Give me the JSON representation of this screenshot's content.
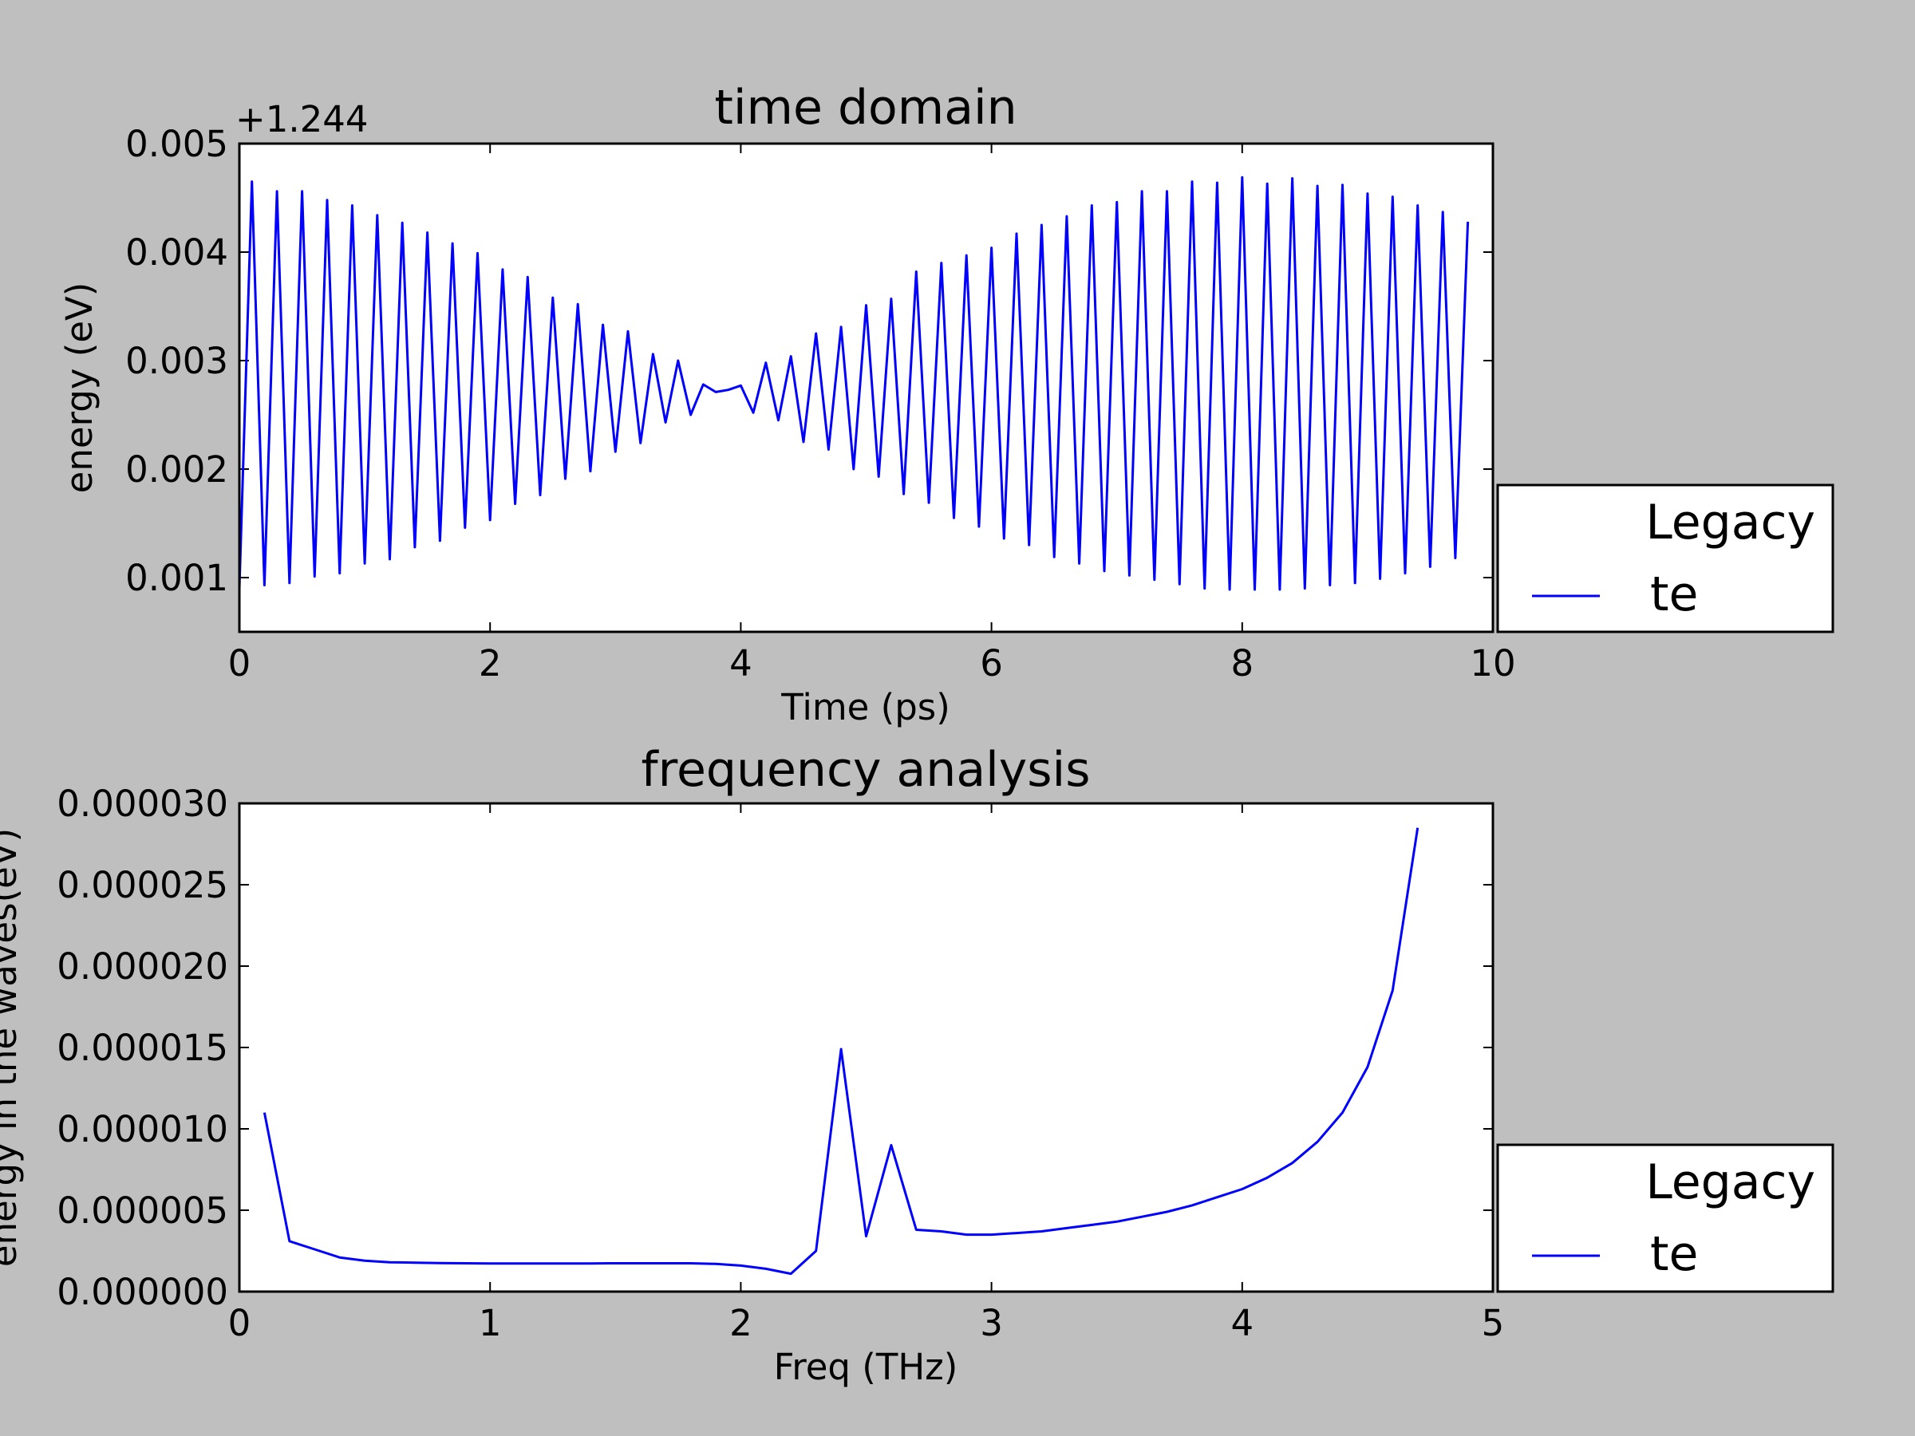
{
  "chart_data": [
    {
      "type": "line",
      "title": "time domain",
      "xlabel": "Time (ps)",
      "ylabel": "energy (eV)",
      "offset_label": "+1.244",
      "xlim": [
        0,
        10
      ],
      "ylim": [
        0.0005,
        0.005
      ],
      "xticks": [
        0,
        2,
        4,
        6,
        8,
        10
      ],
      "xtick_labels": [
        "0",
        "2",
        "4",
        "6",
        "8",
        "10"
      ],
      "yticks": [
        0.001,
        0.002,
        0.003,
        0.004,
        0.005
      ],
      "ytick_labels": [
        "0.001",
        "0.002",
        "0.003",
        "0.004",
        "0.005"
      ],
      "grid": false,
      "legend": {
        "title": "Legacy",
        "placement": "outside-right-lower",
        "entries": [
          "te"
        ]
      },
      "series": [
        {
          "name": "te",
          "color": "#0000ff",
          "x": [
            0,
            0.1,
            0.2,
            0.3,
            0.4,
            0.5,
            0.6,
            0.7,
            0.8,
            0.9,
            1.0,
            1.1,
            1.2,
            1.3,
            1.4,
            1.5,
            1.6,
            1.7,
            1.8,
            1.9,
            2.0,
            2.1,
            2.2,
            2.3,
            2.4,
            2.5,
            2.6,
            2.7,
            2.8,
            2.9,
            3.0,
            3.1,
            3.2,
            3.3,
            3.4,
            3.5,
            3.6,
            3.7,
            3.8,
            3.9,
            4.0,
            4.1,
            4.2,
            4.3,
            4.4,
            4.5,
            4.6,
            4.7,
            4.8,
            4.9,
            5.0,
            5.1,
            5.2,
            5.3,
            5.4,
            5.5,
            5.6,
            5.7,
            5.8,
            5.9,
            6.0,
            6.1,
            6.2,
            6.3,
            6.4,
            6.5,
            6.6,
            6.7,
            6.8,
            6.9,
            7.0,
            7.1,
            7.2,
            7.3,
            7.4,
            7.5,
            7.6,
            7.7,
            7.8,
            7.9,
            8.0,
            8.1,
            8.2,
            8.3,
            8.4,
            8.5,
            8.6,
            8.7,
            8.8,
            8.9,
            9.0,
            9.1,
            9.2,
            9.3,
            9.4,
            9.5,
            9.6,
            9.7,
            9.8
          ],
          "y": [
            0.0009,
            0.00465,
            0.00093,
            0.00456,
            0.00095,
            0.00456,
            0.00101,
            0.00448,
            0.00104,
            0.00443,
            0.00113,
            0.00434,
            0.00117,
            0.00427,
            0.00128,
            0.00418,
            0.00134,
            0.00408,
            0.00146,
            0.00399,
            0.00153,
            0.00384,
            0.00168,
            0.00377,
            0.00176,
            0.00358,
            0.00191,
            0.00352,
            0.00198,
            0.00333,
            0.00216,
            0.00327,
            0.00224,
            0.00306,
            0.00243,
            0.003,
            0.0025,
            0.00278,
            0.00271,
            0.00273,
            0.00277,
            0.00252,
            0.00298,
            0.00245,
            0.00304,
            0.00225,
            0.00325,
            0.00218,
            0.00331,
            0.002,
            0.00351,
            0.00193,
            0.00357,
            0.00177,
            0.00382,
            0.00169,
            0.0039,
            0.00155,
            0.00397,
            0.00147,
            0.00404,
            0.00136,
            0.00417,
            0.0013,
            0.00425,
            0.00119,
            0.00433,
            0.00113,
            0.00443,
            0.00106,
            0.00446,
            0.00102,
            0.00456,
            0.00098,
            0.00456,
            0.00094,
            0.00465,
            0.0009,
            0.00464,
            0.00089,
            0.00469,
            0.00089,
            0.00463,
            0.00089,
            0.00468,
            0.0009,
            0.00461,
            0.00093,
            0.00462,
            0.00095,
            0.00454,
            0.00099,
            0.00451,
            0.00104,
            0.00443,
            0.0011,
            0.00437,
            0.00118,
            0.00428
          ]
        }
      ]
    },
    {
      "type": "line",
      "title": "frequency analysis",
      "xlabel": "Freq (THz)",
      "ylabel": "energy in the waves(eV)",
      "xlim": [
        0,
        5
      ],
      "ylim": [
        0,
        3e-05
      ],
      "xticks": [
        0,
        1,
        2,
        3,
        4,
        5
      ],
      "xtick_labels": [
        "0",
        "1",
        "2",
        "3",
        "4",
        "5"
      ],
      "yticks": [
        0,
        5e-06,
        1e-05,
        1.5e-05,
        2e-05,
        2.5e-05,
        3e-05
      ],
      "ytick_labels": [
        "0.000000",
        "0.000005",
        "0.000010",
        "0.000015",
        "0.000020",
        "0.000025",
        "0.000030"
      ],
      "grid": false,
      "legend": {
        "title": "Legacy",
        "placement": "outside-right-lower",
        "entries": [
          "te"
        ]
      },
      "series": [
        {
          "name": "te",
          "color": "#0000ff",
          "x": [
            0.1,
            0.2,
            0.3,
            0.4,
            0.5,
            0.6,
            0.7,
            0.8,
            0.9,
            1.0,
            1.1,
            1.2,
            1.3,
            1.4,
            1.5,
            1.6,
            1.7,
            1.8,
            1.9,
            2.0,
            2.1,
            2.2,
            2.3,
            2.4,
            2.5,
            2.6,
            2.7,
            2.8,
            2.9,
            3.0,
            3.1,
            3.2,
            3.3,
            3.4,
            3.5,
            3.6,
            3.7,
            3.8,
            3.9,
            4.0,
            4.1,
            4.2,
            4.3,
            4.4,
            4.5,
            4.6,
            4.7
          ],
          "y": [
            1.1e-05,
            3.1e-06,
            2.6e-06,
            2.1e-06,
            1.9e-06,
            1.8e-06,
            1.78e-06,
            1.75e-06,
            1.74e-06,
            1.73e-06,
            1.73e-06,
            1.73e-06,
            1.73e-06,
            1.73e-06,
            1.74e-06,
            1.74e-06,
            1.74e-06,
            1.74e-06,
            1.7e-06,
            1.6e-06,
            1.4e-06,
            1.1e-06,
            2.5e-06,
            1.49e-05,
            3.4e-06,
            9e-06,
            3.8e-06,
            3.7e-06,
            3.5e-06,
            3.5e-06,
            3.6e-06,
            3.7e-06,
            3.9e-06,
            4.1e-06,
            4.3e-06,
            4.6e-06,
            4.9e-06,
            5.3e-06,
            5.8e-06,
            6.3e-06,
            7e-06,
            7.9e-06,
            9.2e-06,
            1.1e-05,
            1.38e-05,
            1.85e-05,
            2.85e-05
          ]
        }
      ]
    }
  ]
}
